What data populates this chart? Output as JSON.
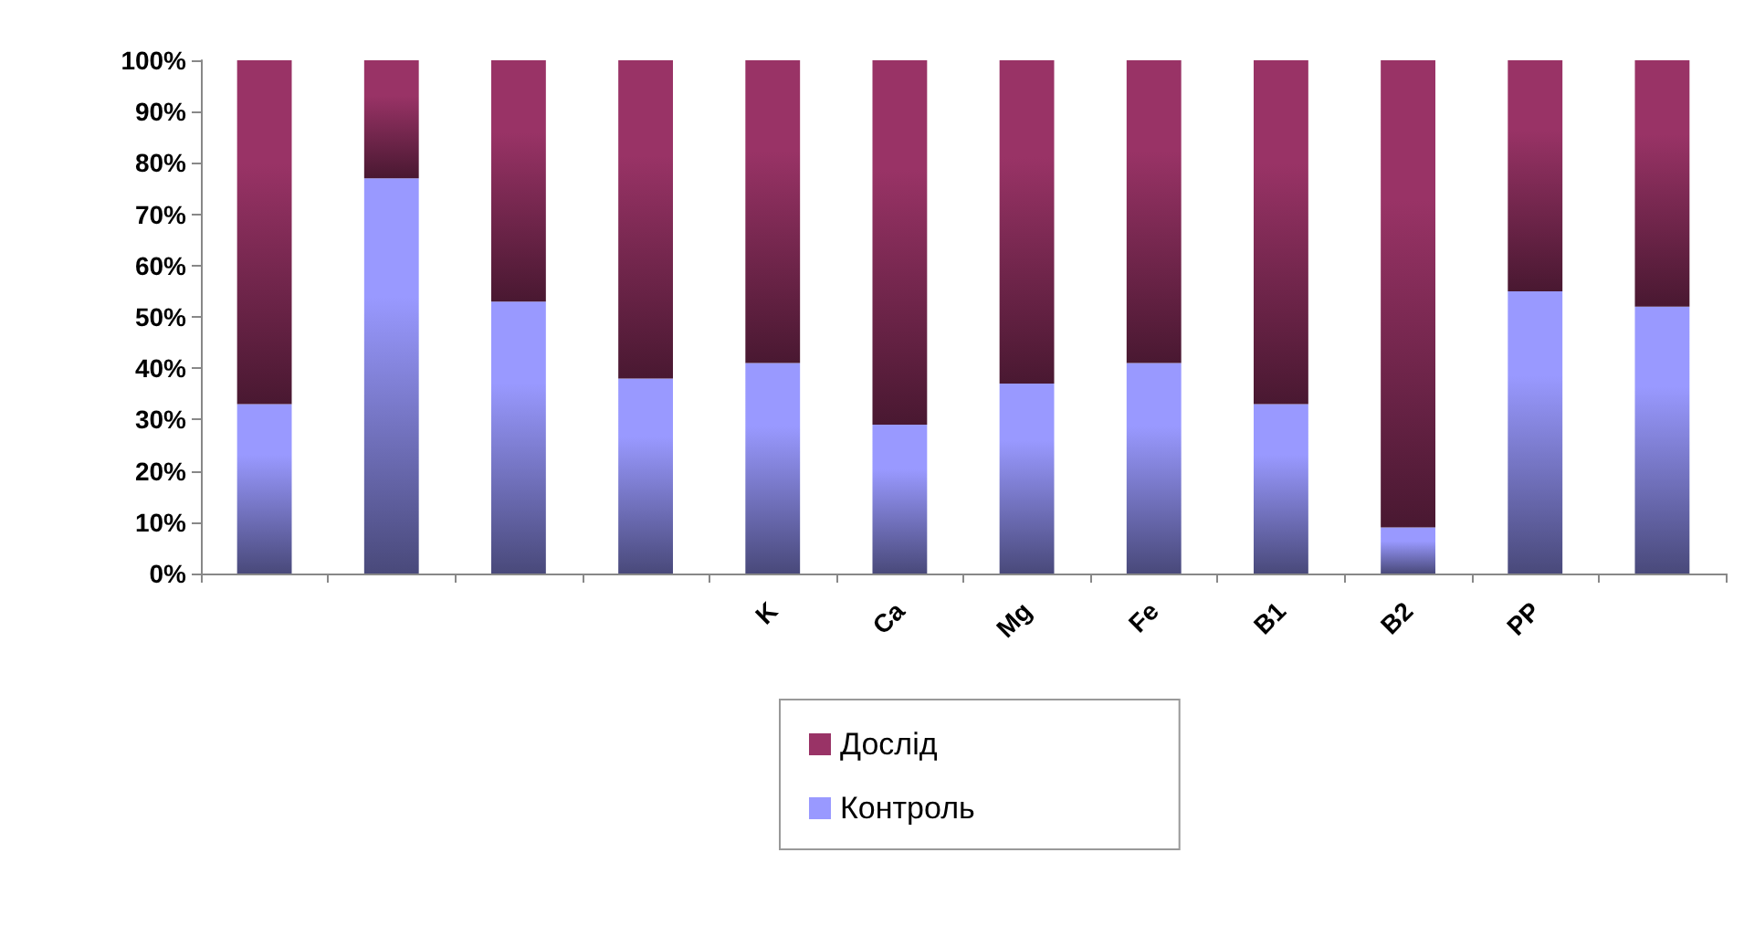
{
  "chart_data": {
    "type": "bar",
    "stacked": true,
    "categories": [
      null,
      null,
      null,
      null,
      "K",
      "Ca",
      "Mg",
      "Fe",
      "B1",
      "B2",
      "PP",
      null
    ],
    "series": [
      {
        "name": "Контроль",
        "color": "#9999ff",
        "values": [
          33,
          77,
          53,
          38,
          41,
          29,
          37,
          41,
          33,
          9,
          55,
          52
        ]
      },
      {
        "name": "Дослід",
        "color": "#993366",
        "values": [
          67,
          23,
          47,
          62,
          59,
          71,
          63,
          59,
          67,
          91,
          45,
          48
        ]
      }
    ],
    "ylim": [
      0,
      100
    ],
    "yticks": [
      {
        "value": 0,
        "label": "0%"
      },
      {
        "value": 10,
        "label": "10%"
      },
      {
        "value": 20,
        "label": "20%"
      },
      {
        "value": 30,
        "label": "30%"
      },
      {
        "value": 40,
        "label": "40%"
      },
      {
        "value": 50,
        "label": "50%"
      },
      {
        "value": 60,
        "label": "60%"
      },
      {
        "value": 70,
        "label": "70%"
      },
      {
        "value": 80,
        "label": "80%"
      },
      {
        "value": 90,
        "label": "90%"
      },
      {
        "value": 100,
        "label": "100%"
      }
    ],
    "grid": false,
    "legend": "bottom"
  }
}
